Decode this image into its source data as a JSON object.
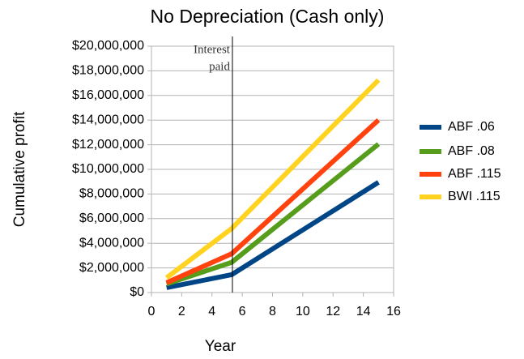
{
  "chart_data": {
    "type": "line",
    "title": "No Depreciation (Cash only)",
    "x_label": "Year",
    "y_label": "Cumulative profit",
    "x": [
      1,
      5.3,
      15
    ],
    "series": [
      {
        "name": "ABF .06",
        "color": "#004586",
        "values": [
          400000,
          1450000,
          8950000
        ]
      },
      {
        "name": "ABF .08",
        "color": "#579d1c",
        "values": [
          700000,
          2450000,
          12050000
        ]
      },
      {
        "name": "ABF .115",
        "color": "#ff420e",
        "values": [
          800000,
          3150000,
          14000000
        ]
      },
      {
        "name": "BWI .115",
        "color": "#ffd320",
        "values": [
          1200000,
          5200000,
          17250000
        ]
      }
    ],
    "xlim": [
      0,
      16
    ],
    "xticks": [
      0,
      2,
      4,
      6,
      8,
      10,
      12,
      14,
      16
    ],
    "ylim": [
      0,
      20000000
    ],
    "yticks": [
      {
        "value": 0,
        "label": "$0"
      },
      {
        "value": 2000000,
        "label": "$2,000,000"
      },
      {
        "value": 4000000,
        "label": "$4,000,000"
      },
      {
        "value": 6000000,
        "label": "$6,000,000"
      },
      {
        "value": 8000000,
        "label": "$8,000,000"
      },
      {
        "value": 10000000,
        "label": "$10,000,000"
      },
      {
        "value": 12000000,
        "label": "$12,000,000"
      },
      {
        "value": 14000000,
        "label": "$14,000,000"
      },
      {
        "value": 16000000,
        "label": "$16,000,000"
      },
      {
        "value": 18000000,
        "label": "$18,000,000"
      },
      {
        "value": 20000000,
        "label": "$20,000,000"
      }
    ],
    "grid": true,
    "legend": "right",
    "annotation": {
      "text": [
        "Interest",
        "paid"
      ],
      "x": 5.35
    }
  }
}
